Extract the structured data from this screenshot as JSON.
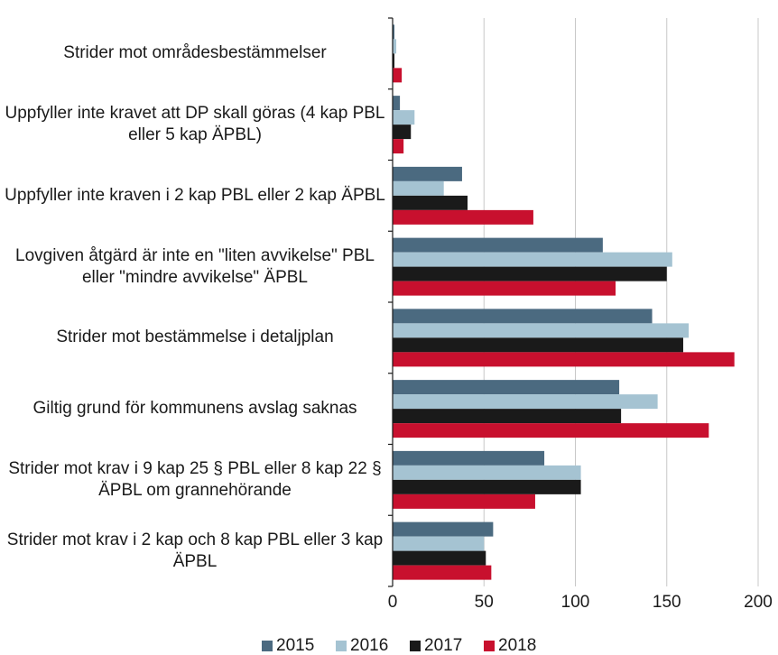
{
  "chart_data": {
    "type": "hbar",
    "categories": [
      "Strider mot områdesbestämmelser",
      "Uppfyller inte kravet att DP skall göras (4 kap PBL eller 5 kap ÄPBL)",
      "Uppfyller inte kraven i 2 kap PBL eller 2 kap ÄPBL",
      "Lovgiven åtgärd är inte en \"liten avvikelse\" PBL eller \"mindre avvikelse\" ÄPBL",
      "Strider mot bestämmelse i detaljplan",
      "Giltig grund för kommunens avslag saknas",
      "Strider mot krav i 9 kap 25 § PBL eller 8 kap 22 § ÄPBL om grannehörande",
      "Strider mot krav i 2 kap och 8 kap PBL eller 3 kap ÄPBL"
    ],
    "series": [
      {
        "name": "2015",
        "color": "#4b6a80",
        "values": [
          1,
          4,
          38,
          115,
          142,
          124,
          83,
          55
        ]
      },
      {
        "name": "2016",
        "color": "#a5c3d2",
        "values": [
          2,
          12,
          28,
          153,
          162,
          145,
          103,
          50
        ]
      },
      {
        "name": "2017",
        "color": "#1a1a1a",
        "values": [
          1,
          10,
          41,
          150,
          159,
          125,
          103,
          51
        ]
      },
      {
        "name": "2018",
        "color": "#c8102e",
        "values": [
          5,
          6,
          77,
          122,
          187,
          173,
          78,
          54
        ]
      }
    ],
    "xlim": [
      0,
      200
    ],
    "xticks": [
      0,
      50,
      100,
      150,
      200
    ],
    "grid": true,
    "legend": "bottom"
  }
}
